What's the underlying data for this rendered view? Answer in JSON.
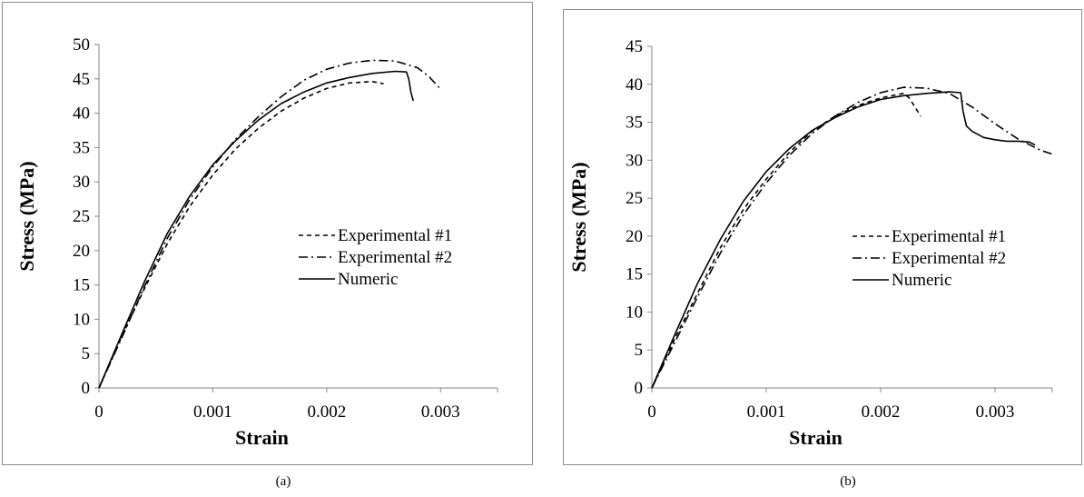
{
  "captions": [
    "(a)",
    "(b)"
  ],
  "chart_data": [
    {
      "type": "line",
      "panel": "(a)",
      "title": "",
      "xlabel": "Strain",
      "ylabel": "Stress (MPa)",
      "xlim": [
        0,
        0.0035
      ],
      "ylim": [
        0,
        50
      ],
      "xticks": [
        0,
        0.001,
        0.002,
        0.003
      ],
      "xtick_labels": [
        "0",
        "0.001",
        "0.002",
        "0.003"
      ],
      "yticks": [
        0,
        5,
        10,
        15,
        20,
        25,
        30,
        35,
        40,
        45,
        50
      ],
      "ytick_labels": [
        "0",
        "5",
        "10",
        "15",
        "20",
        "25",
        "30",
        "35",
        "40",
        "45",
        "50"
      ],
      "grid": false,
      "legend": "right",
      "series": [
        {
          "name": "Experimental #1",
          "style": "dashed",
          "color": "#000000",
          "x": [
            0,
            0.0002,
            0.0004,
            0.0006,
            0.0008,
            0.001,
            0.0012,
            0.0014,
            0.0016,
            0.0018,
            0.002,
            0.0022,
            0.0024,
            0.0025
          ],
          "y": [
            0,
            7.5,
            14.5,
            21,
            26.5,
            31,
            34.8,
            37.8,
            40.3,
            42.2,
            43.6,
            44.4,
            44.6,
            44.3
          ]
        },
        {
          "name": "Experimental #2",
          "style": "dash-dot",
          "color": "#000000",
          "x": [
            0,
            0.0002,
            0.0004,
            0.0006,
            0.0008,
            0.001,
            0.0012,
            0.0014,
            0.0016,
            0.0018,
            0.002,
            0.0022,
            0.0024,
            0.0026,
            0.0028,
            0.0029,
            0.003
          ],
          "y": [
            0,
            7.3,
            14.8,
            21.8,
            27.5,
            32.2,
            36.2,
            39.5,
            42.4,
            44.8,
            46.4,
            47.3,
            47.7,
            47.6,
            46.6,
            45.3,
            43.5
          ]
        },
        {
          "name": "Numeric",
          "style": "solid",
          "color": "#000000",
          "x": [
            0,
            0.0002,
            0.0004,
            0.0006,
            0.0008,
            0.001,
            0.0012,
            0.0014,
            0.0016,
            0.0018,
            0.002,
            0.0022,
            0.0024,
            0.0026,
            0.0027,
            0.00272,
            0.00274,
            0.00276
          ],
          "y": [
            0,
            7.8,
            15.5,
            22.5,
            28,
            32.5,
            36,
            39,
            41.4,
            43.1,
            44.4,
            45.2,
            45.8,
            46.1,
            46,
            45,
            43,
            41.8
          ]
        }
      ]
    },
    {
      "type": "line",
      "panel": "(b)",
      "title": "",
      "xlabel": "Strain",
      "ylabel": "Stress (MPa)",
      "xlim": [
        0,
        0.0035
      ],
      "ylim": [
        0,
        45
      ],
      "xticks": [
        0,
        0.001,
        0.002,
        0.003
      ],
      "xtick_labels": [
        "0",
        "0.001",
        "0.002",
        "0.003"
      ],
      "yticks": [
        0,
        5,
        10,
        15,
        20,
        25,
        30,
        35,
        40,
        45
      ],
      "ytick_labels": [
        "0",
        "5",
        "10",
        "15",
        "20",
        "25",
        "30",
        "35",
        "40",
        "45"
      ],
      "grid": false,
      "legend": "right",
      "series": [
        {
          "name": "Experimental #1",
          "style": "dashed",
          "color": "#000000",
          "x": [
            0,
            0.0002,
            0.0004,
            0.0006,
            0.0008,
            0.001,
            0.0012,
            0.0014,
            0.0016,
            0.0018,
            0.002,
            0.0022,
            0.00225,
            0.0023,
            0.00235
          ],
          "y": [
            0,
            6.5,
            12.5,
            18.5,
            23.5,
            27.5,
            31,
            33.8,
            35.8,
            37.2,
            38.2,
            38.8,
            38.2,
            37,
            35.8
          ]
        },
        {
          "name": "Experimental #2",
          "style": "dash-dot",
          "color": "#000000",
          "x": [
            0,
            0.0002,
            0.0004,
            0.0006,
            0.0008,
            0.001,
            0.0012,
            0.0014,
            0.0016,
            0.0018,
            0.002,
            0.0022,
            0.0024,
            0.0026,
            0.0028,
            0.003,
            0.0032,
            0.0034,
            0.0035
          ],
          "y": [
            0,
            6,
            12,
            17.8,
            22.8,
            27,
            30.6,
            33.5,
            35.8,
            37.6,
            38.9,
            39.6,
            39.5,
            38.8,
            37,
            34.8,
            32.8,
            31.3,
            30.8
          ]
        },
        {
          "name": "Numeric",
          "style": "solid",
          "color": "#000000",
          "x": [
            0,
            0.0002,
            0.0004,
            0.0006,
            0.0008,
            0.001,
            0.0012,
            0.0014,
            0.0016,
            0.0018,
            0.002,
            0.0022,
            0.0024,
            0.0026,
            0.0027,
            0.00272,
            0.00275,
            0.0028,
            0.0029,
            0.003,
            0.0031,
            0.0032,
            0.0033,
            0.00335
          ],
          "y": [
            0,
            7,
            13.8,
            19.6,
            24.6,
            28.5,
            31.5,
            33.9,
            35.6,
            37,
            38,
            38.5,
            38.8,
            39,
            38.9,
            36.5,
            34.5,
            33.8,
            33,
            32.7,
            32.5,
            32.5,
            32.4,
            32
          ]
        }
      ]
    }
  ]
}
